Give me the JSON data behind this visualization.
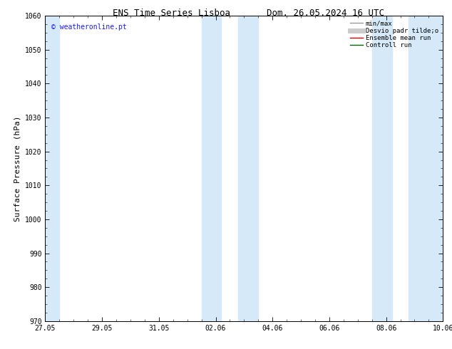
{
  "title_left": "ENS Time Series Lisboa",
  "title_right": "Dom. 26.05.2024 16 UTC",
  "ylabel": "Surface Pressure (hPa)",
  "ylim": [
    970,
    1060
  ],
  "yticks": [
    970,
    980,
    990,
    1000,
    1010,
    1020,
    1030,
    1040,
    1050,
    1060
  ],
  "xtick_labels": [
    "27.05",
    "29.05",
    "31.05",
    "02.06",
    "04.06",
    "06.06",
    "08.06",
    "10.06"
  ],
  "xtick_positions": [
    0,
    2,
    4,
    6,
    8,
    10,
    12,
    14
  ],
  "xlim": [
    0,
    14
  ],
  "shaded_bands": [
    {
      "x_start": 0.0,
      "x_end": 0.5
    },
    {
      "x_start": 5.5,
      "x_end": 6.2
    },
    {
      "x_start": 6.8,
      "x_end": 7.5
    },
    {
      "x_start": 11.5,
      "x_end": 12.2
    },
    {
      "x_start": 12.8,
      "x_end": 14.0
    }
  ],
  "shaded_color": "#d6e9f8",
  "background_color": "#ffffff",
  "watermark_text": "© weatheronline.pt",
  "watermark_color": "#1a1aff",
  "watermark_fontsize": 7,
  "legend_labels": [
    "min/max",
    "Desvio padr tilde;o",
    "Ensemble mean run",
    "Controll run"
  ],
  "legend_colors": [
    "#999999",
    "#cccccc",
    "#dd0000",
    "#006600"
  ],
  "legend_lws": [
    1.0,
    5,
    1.0,
    1.0
  ],
  "tick_color": "#000000",
  "spine_color": "#000000",
  "title_fontsize": 9,
  "tick_fontsize": 7,
  "ylabel_fontsize": 8,
  "legend_fontsize": 6.5
}
